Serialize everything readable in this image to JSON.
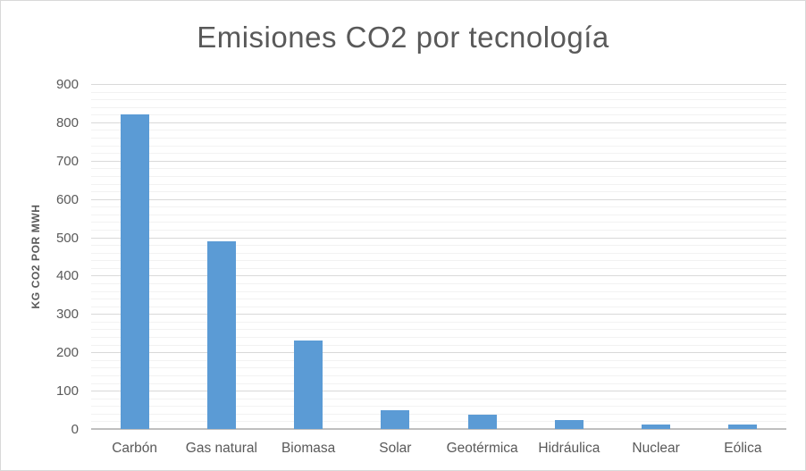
{
  "chart_data": {
    "type": "bar",
    "title": "Emisiones CO2 por tecnología",
    "ylabel": "KG CO2 POR MWH",
    "xlabel": "",
    "categories": [
      "Carbón",
      "Gas natural",
      "Biomasa",
      "Solar",
      "Geotérmica",
      "Hidráulica",
      "Nuclear",
      "Eólica"
    ],
    "values": [
      820,
      490,
      230,
      48,
      38,
      24,
      12,
      11
    ],
    "ylim": [
      0,
      900
    ],
    "ytick_step": 100,
    "ytick_labels": [
      "0",
      "100",
      "200",
      "300",
      "400",
      "500",
      "600",
      "700",
      "800",
      "900"
    ],
    "minor_gridline_step": 20,
    "grid": true,
    "legend": false,
    "colors": {
      "bar": "#5B9BD5",
      "major_gridline": "#D9D9D9",
      "minor_gridline": "#F2F2F2",
      "axis_line": "#BFBFBF",
      "text": "#595959",
      "background": "#FFFFFF",
      "frame_border": "#D9D9D9"
    }
  }
}
